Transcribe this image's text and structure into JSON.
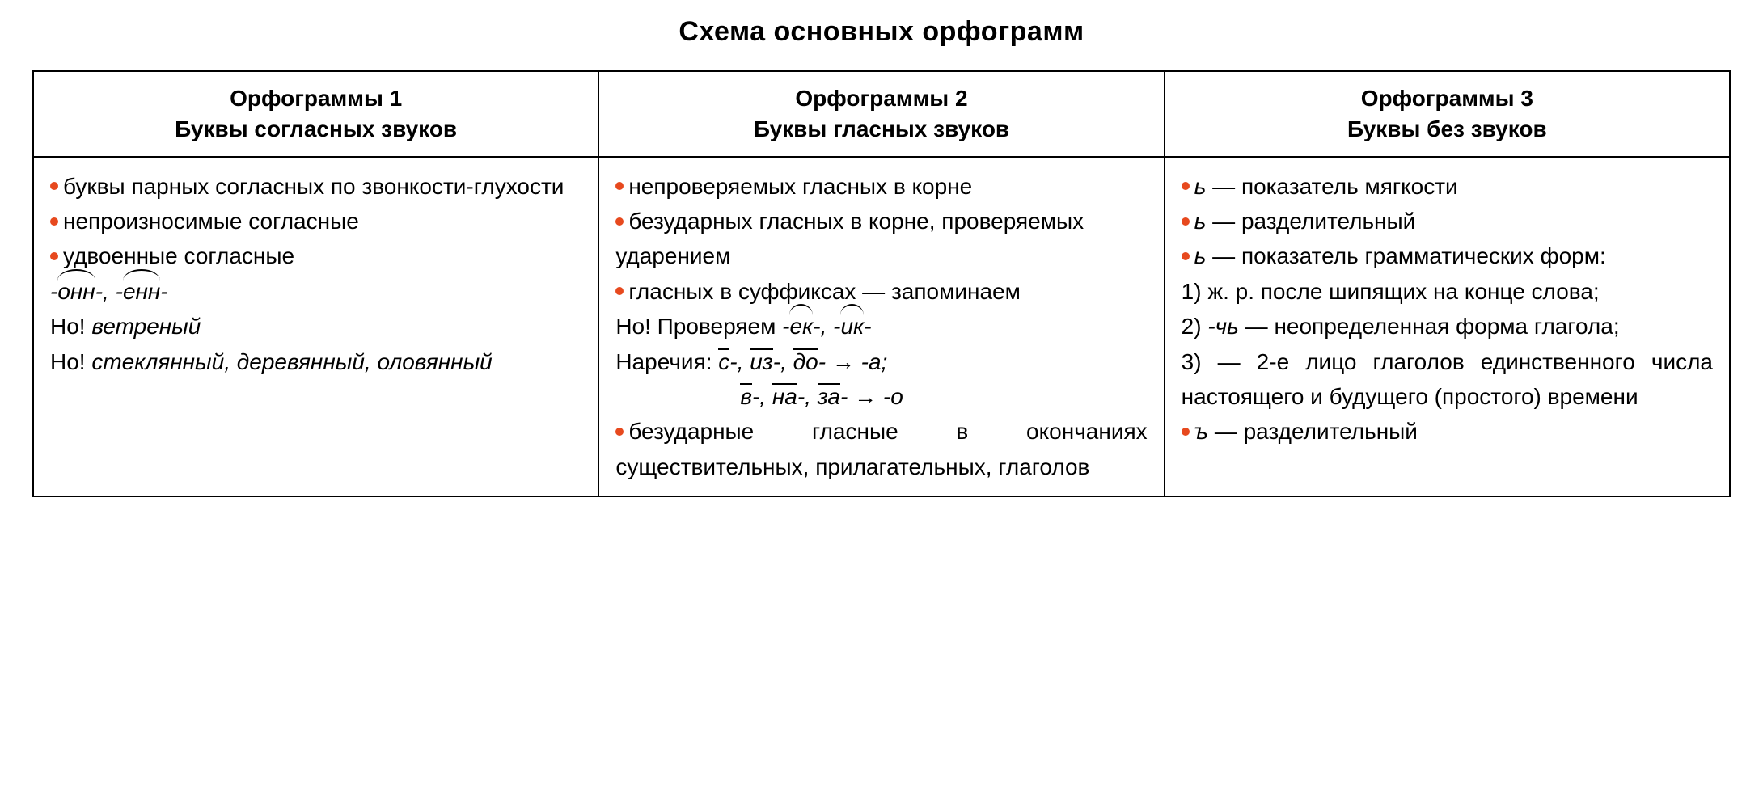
{
  "title": "Схема основных орфограмм",
  "bullet_color": "#e7491e",
  "border_color": "#000000",
  "background_color": "#ffffff",
  "font_size_title": 34,
  "font_size_header": 28,
  "font_size_body": 28,
  "columns": [
    {
      "h1": "Орфограммы 1",
      "h2": "Буквы согласных звуков"
    },
    {
      "h1": "Орфограммы 2",
      "h2": "Буквы гласных звуков"
    },
    {
      "h1": "Орфограммы 3",
      "h2": "Буквы без звуков"
    }
  ],
  "col1": {
    "b1": "буквы парных согласных по звон­кости-глухости",
    "b2": "непроизносимые согласные",
    "b3": "удвоенные согласные",
    "morph1_pre": "-",
    "morph1": "онн",
    "morph1_post": "-, -",
    "morph2": "енн",
    "morph2_post": "-",
    "no1_label": "Но! ",
    "no1_ital": "ветреный",
    "no2_label": "Но! ",
    "no2_ital": "стеклянный, деревянный, оловянный"
  },
  "col2": {
    "b1": "непроверяемых гласных в корне",
    "b2": "безударных гласных в корне, про­веряемых ударением",
    "b3": "гласных в суффиксах — запоми­наем",
    "no_label": "Но! Проверяем ",
    "ek_pre": "-",
    "ek": "ек",
    "ek_post": "-, -",
    "ik": "ик",
    "ik_post": "-",
    "narech_label": "Наречия: ",
    "n1": "с",
    "n1_post": "-, ",
    "n2": "из",
    "n2_post": "-, ",
    "n3": "до",
    "n3_post": "- ",
    "arrow1": "→",
    "res1": " -а;",
    "n4": "в",
    "n4_post": "-, ",
    "n5": "на",
    "n5_post": "-, ",
    "n6": "за",
    "n6_post": "- ",
    "arrow2": "→",
    "res2": " -о",
    "b4": "безударные гласные в окончаниях существительных, прилагательных, глаголов"
  },
  "col3": {
    "b1_pre": "ь",
    "b1": " — показатель мягкости",
    "b2_pre": "ь",
    "b2": " — разделительный",
    "b3_pre": "ь",
    "b3": " — показатель грамматических форм:",
    "p1": "1) ж. р. после шипящих на конце слова;",
    "p2_a": "2) ",
    "p2_ital": "-чь",
    "p2_b": " — неопределенная форма глагола;",
    "p3": "3) — 2-е лицо глаголов единствен­ного числа настоящего и будущего (простого) времени",
    "b4_pre": "ъ",
    "b4": " — разделительный"
  }
}
